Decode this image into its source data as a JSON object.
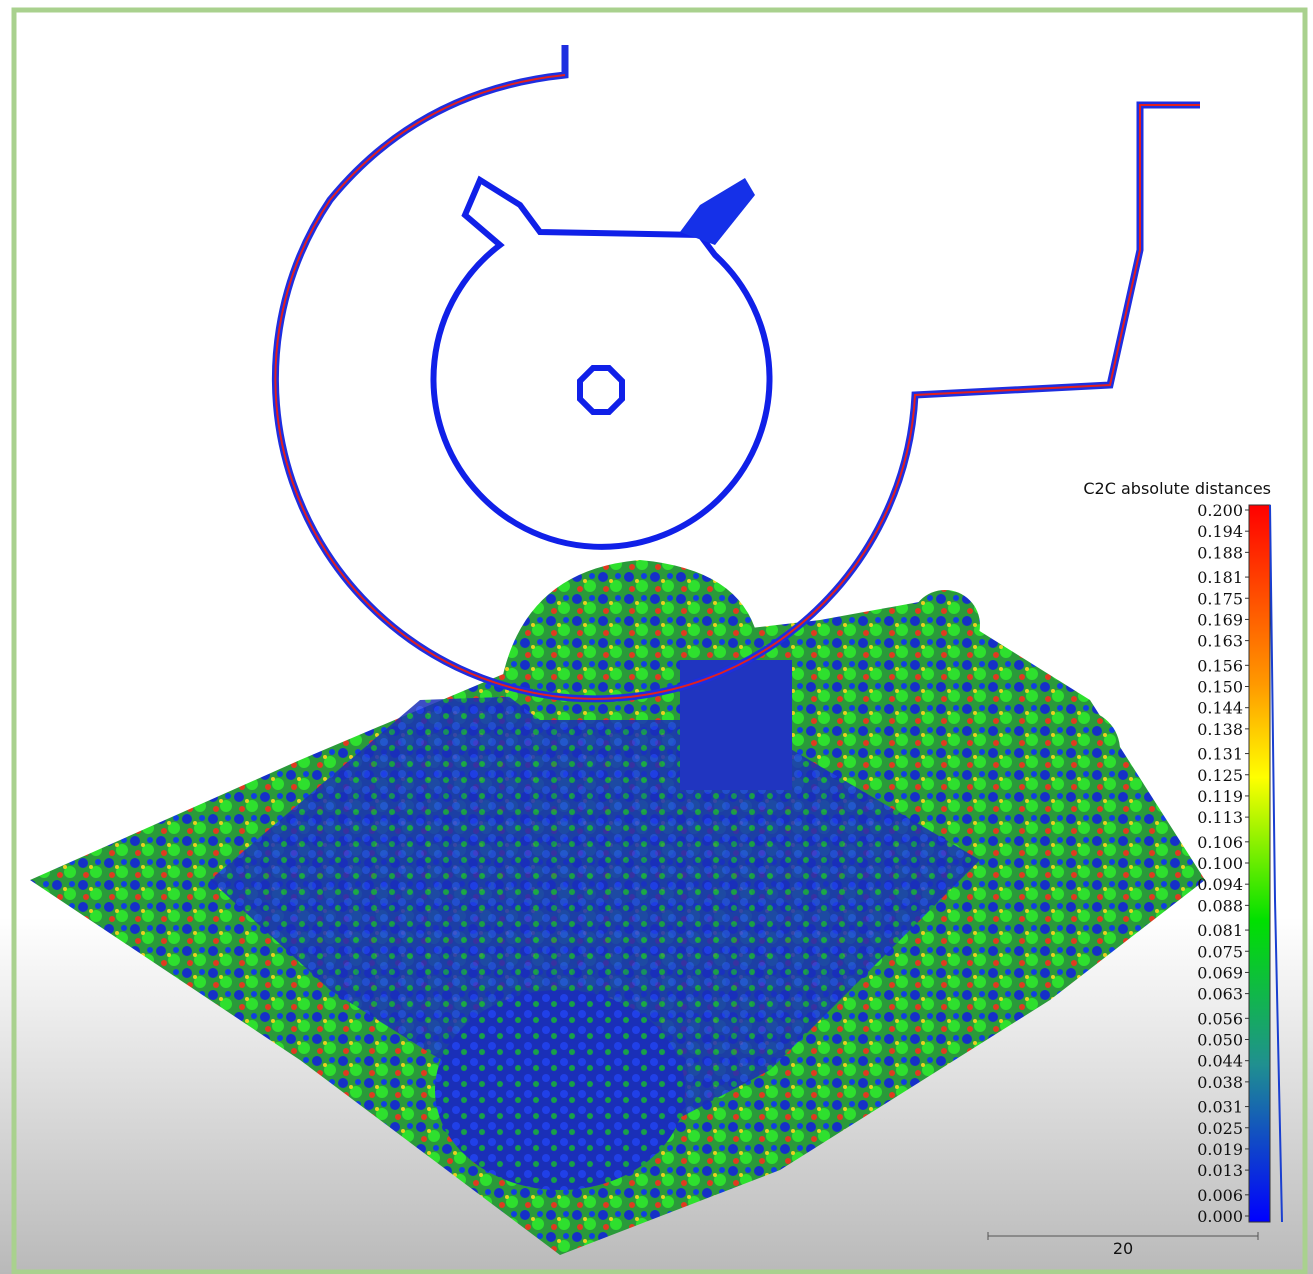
{
  "color_scale": {
    "title": "C2C absolute distances",
    "labels": [
      "0.200",
      "0.194",
      "0.188",
      "0.181",
      "0.175",
      "0.169",
      "0.163",
      "0.156",
      "0.150",
      "0.144",
      "0.138",
      "0.131",
      "0.125",
      "0.119",
      "0.113",
      "0.106",
      "0.100",
      "0.094",
      "0.088",
      "0.081",
      "0.075",
      "0.069",
      "0.063",
      "0.056",
      "0.050",
      "0.044",
      "0.038",
      "0.031",
      "0.025",
      "0.019",
      "0.013",
      "0.006",
      "0.000"
    ]
  },
  "scale_bar": {
    "label": "20"
  }
}
